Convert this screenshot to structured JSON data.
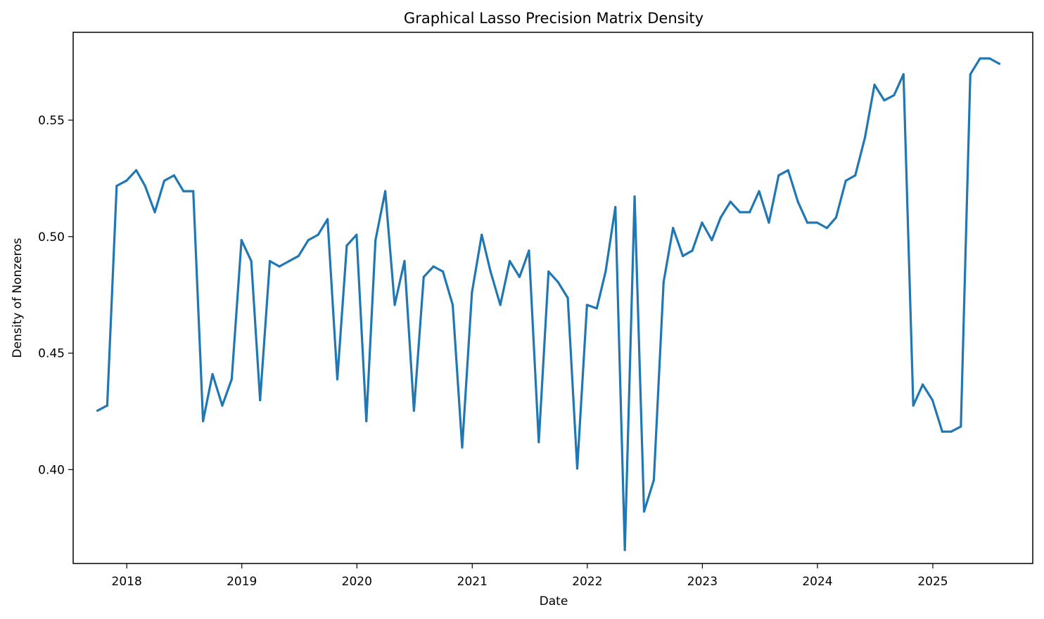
{
  "chart_data": {
    "type": "line",
    "title": "Graphical Lasso Precision Matrix Density",
    "xlabel": "Date",
    "ylabel": "Density of Nonzeros",
    "xlim": [
      "2017-07-15",
      "2025-11-14"
    ],
    "ylim": [
      0.3597,
      0.5877
    ],
    "x_ticks": [
      {
        "date": "2018-01-01",
        "label": "2018"
      },
      {
        "date": "2019-01-01",
        "label": "2019"
      },
      {
        "date": "2020-01-01",
        "label": "2020"
      },
      {
        "date": "2021-01-01",
        "label": "2021"
      },
      {
        "date": "2022-01-01",
        "label": "2022"
      },
      {
        "date": "2023-01-01",
        "label": "2023"
      },
      {
        "date": "2024-01-01",
        "label": "2024"
      },
      {
        "date": "2025-01-01",
        "label": "2025"
      }
    ],
    "y_ticks": [
      {
        "value": 0.4,
        "label": "0.40"
      },
      {
        "value": 0.45,
        "label": "0.45"
      },
      {
        "value": 0.5,
        "label": "0.50"
      },
      {
        "value": 0.55,
        "label": "0.55"
      }
    ],
    "grid": false,
    "legend": "none",
    "series": [
      {
        "color": "#1f77b4",
        "points": [
          [
            "2017-09-30",
            0.4253
          ],
          [
            "2017-10-31",
            0.4275
          ],
          [
            "2017-11-30",
            0.5218
          ],
          [
            "2017-12-31",
            0.524
          ],
          [
            "2018-01-31",
            0.5285
          ],
          [
            "2018-02-28",
            0.5218
          ],
          [
            "2018-03-31",
            0.5105
          ],
          [
            "2018-04-30",
            0.524
          ],
          [
            "2018-05-31",
            0.5263
          ],
          [
            "2018-06-30",
            0.5195
          ],
          [
            "2018-07-31",
            0.5195
          ],
          [
            "2018-08-31",
            0.4208
          ],
          [
            "2018-09-30",
            0.441
          ],
          [
            "2018-10-31",
            0.4275
          ],
          [
            "2018-11-30",
            0.4388
          ],
          [
            "2018-12-31",
            0.4985
          ],
          [
            "2019-01-31",
            0.4895
          ],
          [
            "2019-02-28",
            0.4298
          ],
          [
            "2019-03-31",
            0.4895
          ],
          [
            "2019-04-30",
            0.4872
          ],
          [
            "2019-05-31",
            0.4895
          ],
          [
            "2019-06-30",
            0.4917
          ],
          [
            "2019-07-31",
            0.4985
          ],
          [
            "2019-08-31",
            0.5008
          ],
          [
            "2019-09-30",
            0.5075
          ],
          [
            "2019-10-31",
            0.4388
          ],
          [
            "2019-11-30",
            0.4962
          ],
          [
            "2019-12-31",
            0.5008
          ],
          [
            "2020-01-31",
            0.4208
          ],
          [
            "2020-02-29",
            0.4985
          ],
          [
            "2020-03-31",
            0.5195
          ],
          [
            "2020-04-30",
            0.4707
          ],
          [
            "2020-05-31",
            0.4895
          ],
          [
            "2020-06-30",
            0.4253
          ],
          [
            "2020-07-31",
            0.4827
          ],
          [
            "2020-08-31",
            0.4872
          ],
          [
            "2020-09-30",
            0.485
          ],
          [
            "2020-10-31",
            0.4707
          ],
          [
            "2020-11-30",
            0.4095
          ],
          [
            "2020-12-31",
            0.476
          ],
          [
            "2021-01-31",
            0.5008
          ],
          [
            "2021-02-28",
            0.485
          ],
          [
            "2021-03-31",
            0.4707
          ],
          [
            "2021-04-30",
            0.4895
          ],
          [
            "2021-05-31",
            0.4827
          ],
          [
            "2021-06-30",
            0.494
          ],
          [
            "2021-07-31",
            0.4118
          ],
          [
            "2021-08-31",
            0.485
          ],
          [
            "2021-09-30",
            0.4805
          ],
          [
            "2021-10-31",
            0.4737
          ],
          [
            "2021-11-30",
            0.4005
          ],
          [
            "2021-12-31",
            0.4707
          ],
          [
            "2022-01-31",
            0.4692
          ],
          [
            "2022-02-28",
            0.485
          ],
          [
            "2022-03-31",
            0.5127
          ],
          [
            "2022-04-30",
            0.3655
          ],
          [
            "2022-05-31",
            0.5172
          ],
          [
            "2022-06-30",
            0.382
          ],
          [
            "2022-07-31",
            0.3955
          ],
          [
            "2022-08-31",
            0.4805
          ],
          [
            "2022-09-30",
            0.5037
          ],
          [
            "2022-10-31",
            0.4917
          ],
          [
            "2022-11-30",
            0.494
          ],
          [
            "2022-12-31",
            0.506
          ],
          [
            "2023-01-31",
            0.4985
          ],
          [
            "2023-02-28",
            0.5082
          ],
          [
            "2023-03-31",
            0.515
          ],
          [
            "2023-04-30",
            0.5105
          ],
          [
            "2023-05-31",
            0.5105
          ],
          [
            "2023-06-30",
            0.5195
          ],
          [
            "2023-07-31",
            0.506
          ],
          [
            "2023-08-31",
            0.5263
          ],
          [
            "2023-09-30",
            0.5285
          ],
          [
            "2023-10-31",
            0.515
          ],
          [
            "2023-11-30",
            0.506
          ],
          [
            "2023-12-31",
            0.506
          ],
          [
            "2024-01-31",
            0.5037
          ],
          [
            "2024-02-29",
            0.5082
          ],
          [
            "2024-03-31",
            0.524
          ],
          [
            "2024-04-30",
            0.5263
          ],
          [
            "2024-05-31",
            0.5427
          ],
          [
            "2024-06-30",
            0.5652
          ],
          [
            "2024-07-31",
            0.5585
          ],
          [
            "2024-08-31",
            0.5607
          ],
          [
            "2024-09-30",
            0.5697
          ],
          [
            "2024-10-31",
            0.4275
          ],
          [
            "2024-11-30",
            0.4365
          ],
          [
            "2024-12-31",
            0.4298
          ],
          [
            "2025-01-31",
            0.4163
          ],
          [
            "2025-02-28",
            0.4163
          ],
          [
            "2025-03-31",
            0.4185
          ],
          [
            "2025-04-30",
            0.5697
          ],
          [
            "2025-05-31",
            0.5765
          ],
          [
            "2025-06-30",
            0.5765
          ],
          [
            "2025-07-31",
            0.5742
          ]
        ]
      }
    ]
  }
}
